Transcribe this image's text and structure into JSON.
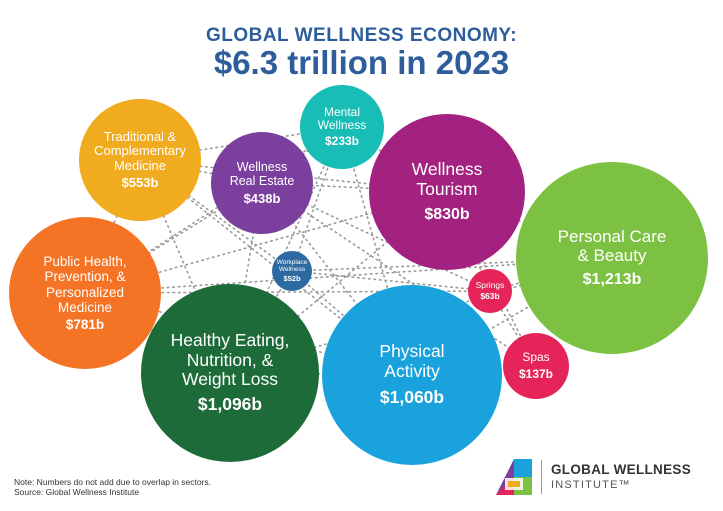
{
  "header": {
    "title_line1": "GLOBAL WELLNESS ECONOMY:",
    "title_line2": "$6.3 trillion in 2023"
  },
  "colors": {
    "title": "#2e5d9c",
    "dots": "#9a9a9a",
    "traditional_medicine": "#f0ab1e",
    "wellness_real_estate": "#7b3f9d",
    "mental_wellness": "#18bdb6",
    "wellness_tourism": "#a3217f",
    "personal_care": "#7dc143",
    "public_health": "#f47325",
    "workplace_wellness": "#2c6aa1",
    "springs": "#e5245a",
    "spas": "#e5245a",
    "healthy_eating": "#1d6b39",
    "physical_activity": "#1aa2dc"
  },
  "sectors": [
    {
      "id": "traditional-medicine",
      "label": "Traditional &\nComplementary\nMedicine",
      "value": "$553b"
    },
    {
      "id": "wellness-real-estate",
      "label": "Wellness\nReal Estate",
      "value": "$438b"
    },
    {
      "id": "mental-wellness",
      "label": "Mental\nWellness",
      "value": "$233b"
    },
    {
      "id": "wellness-tourism",
      "label": "Wellness\nTourism",
      "value": "$830b"
    },
    {
      "id": "personal-care",
      "label": "Personal Care\n& Beauty",
      "value": "$1,213b"
    },
    {
      "id": "public-health",
      "label": "Public Health,\nPrevention, &\nPersonalized\nMedicine",
      "value": "$781b"
    },
    {
      "id": "workplace-wellness",
      "label": "Workplace\nWellness",
      "value": "$52b"
    },
    {
      "id": "springs",
      "label": "Springs",
      "value": "$63b"
    },
    {
      "id": "spas",
      "label": "Spas",
      "value": "$137b"
    },
    {
      "id": "healthy-eating",
      "label": "Healthy Eating,\nNutrition, &\nWeight Loss",
      "value": "$1,096b"
    },
    {
      "id": "physical-activity",
      "label": "Physical\nActivity",
      "value": "$1,060b"
    }
  ],
  "footer": {
    "note": "Note: Numbers do not add due to overlap in sectors.",
    "source": "Source: Global Wellness Institute",
    "logo_line1": "GLOBAL WELLNESS",
    "logo_line2": "INSTITUTE™"
  }
}
